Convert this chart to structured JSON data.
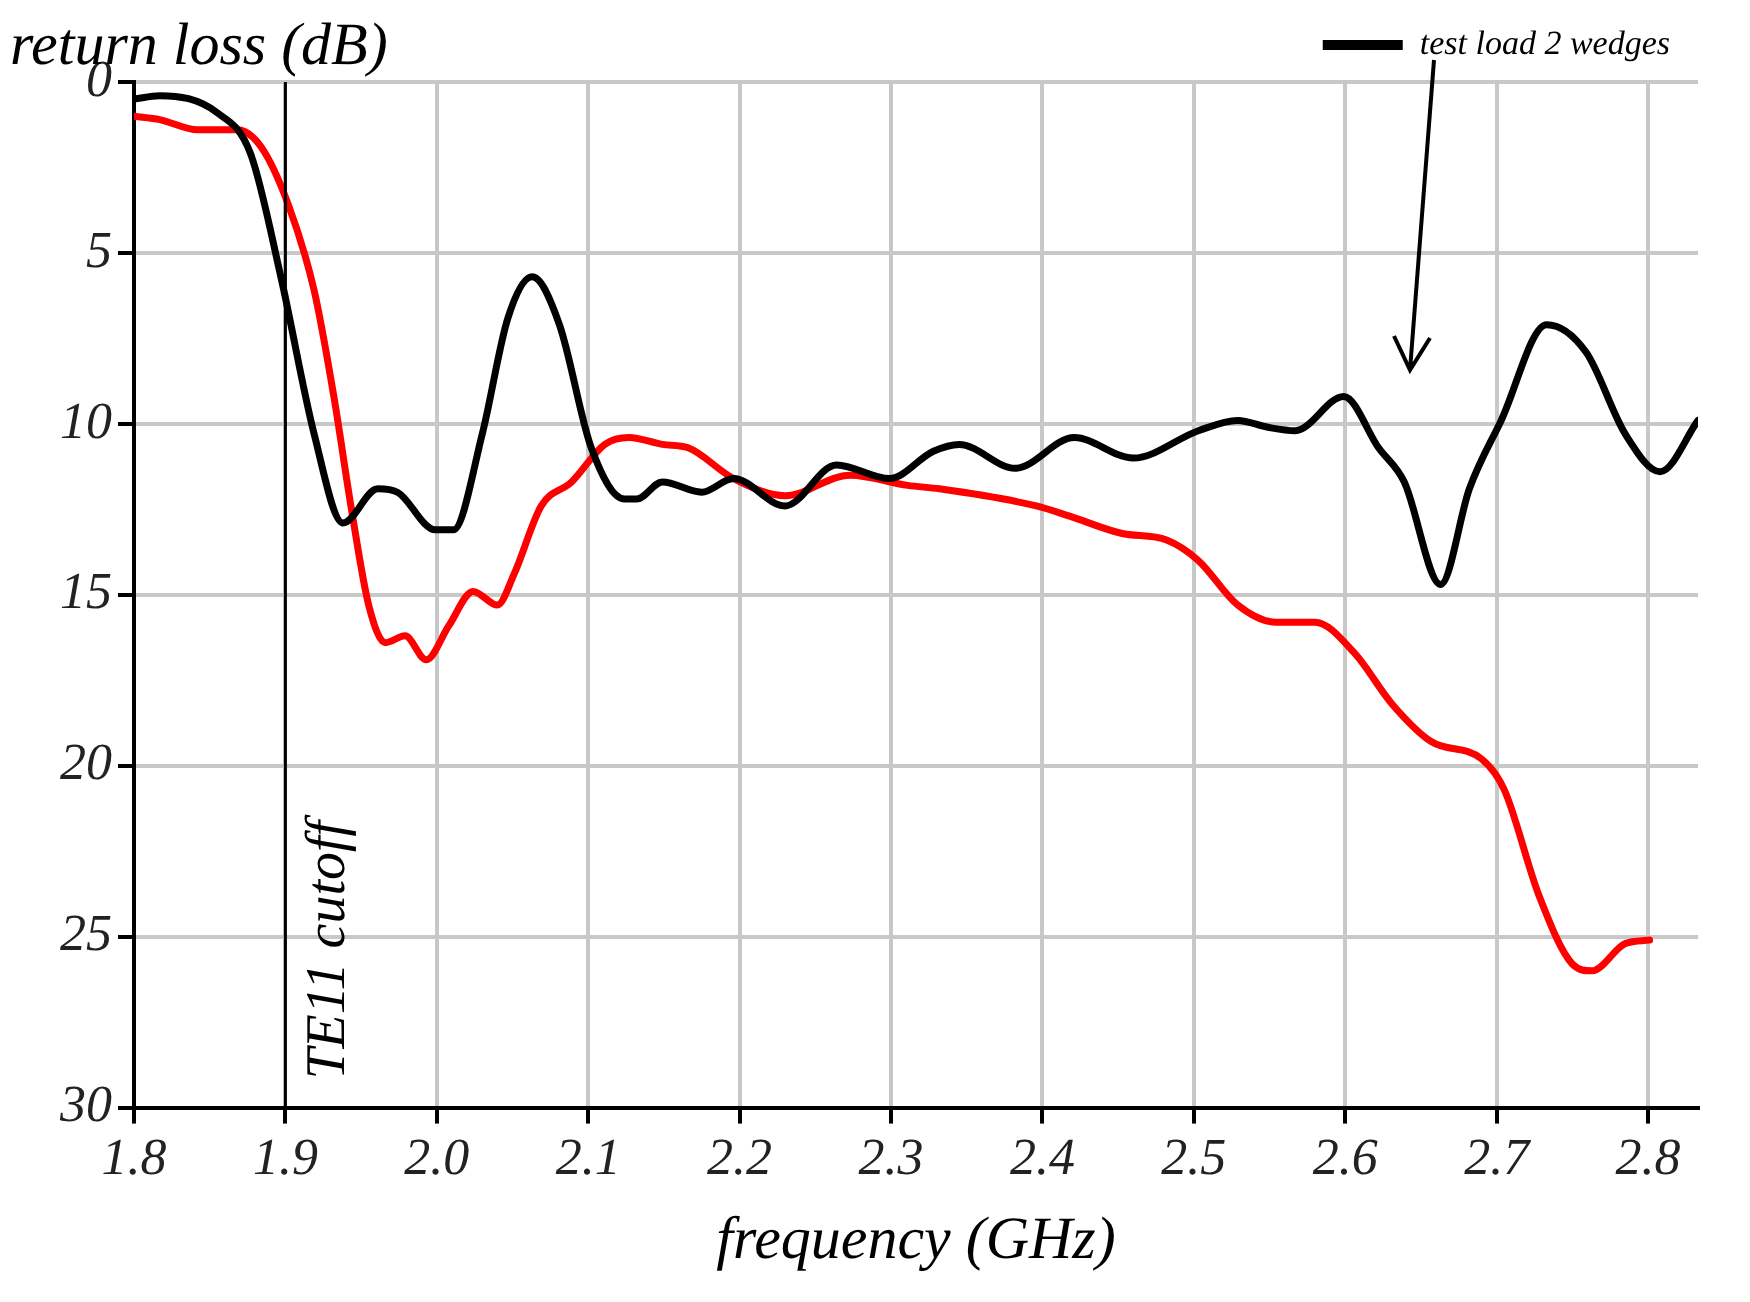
{
  "chart_data": {
    "type": "line",
    "ylabel": "return loss (dB)",
    "xlabel": "frequency (GHz)",
    "xlim": [
      1.8,
      2.833
    ],
    "xticks": [
      {
        "value": 1.8,
        "label": "1.8"
      },
      {
        "value": 1.9,
        "label": "1.9"
      },
      {
        "value": 2.0,
        "label": "2.0"
      },
      {
        "value": 2.1,
        "label": "2.1"
      },
      {
        "value": 2.2,
        "label": "2.2"
      },
      {
        "value": 2.3,
        "label": "2.3"
      },
      {
        "value": 2.4,
        "label": "2.4"
      },
      {
        "value": 2.5,
        "label": "2.5"
      },
      {
        "value": 2.6,
        "label": "2.6"
      },
      {
        "value": 2.7,
        "label": "2.7"
      },
      {
        "value": 2.8,
        "label": "2.8"
      }
    ],
    "ylim": [
      30,
      0
    ],
    "yticks": [
      0,
      5,
      10,
      15,
      20,
      25,
      30
    ],
    "grid": true,
    "legend": "top",
    "marker": "none",
    "line_style": "solid",
    "ref_lines": [
      {
        "axis": "x",
        "value": 1.9,
        "label": "TE11 cutoff",
        "color": "#000000"
      }
    ],
    "series": [
      {
        "name": "test load 2 wedges",
        "color": "#000000",
        "x": [
          1.8,
          1.817,
          1.855,
          1.877,
          1.897,
          1.919,
          1.938,
          1.961,
          1.974,
          1.999,
          2.011,
          2.03,
          2.047,
          2.063,
          2.081,
          2.102,
          2.124,
          2.132,
          2.149,
          2.175,
          2.196,
          2.23,
          2.264,
          2.299,
          2.328,
          2.345,
          2.382,
          2.421,
          2.46,
          2.503,
          2.529,
          2.549,
          2.567,
          2.599,
          2.622,
          2.639,
          2.663,
          2.682,
          2.703,
          2.733,
          2.759,
          2.785,
          2.808,
          2.833
        ],
        "values": [
          0.5,
          0.4,
          0.9,
          2.1,
          5.7,
          10.3,
          12.9,
          11.9,
          12.0,
          13.1,
          13.1,
          10.3,
          6.9,
          5.7,
          7.1,
          10.7,
          12.2,
          12.2,
          11.7,
          12.0,
          11.6,
          12.4,
          11.2,
          11.6,
          10.8,
          10.6,
          11.3,
          10.4,
          11.0,
          10.2,
          9.9,
          10.1,
          10.2,
          9.2,
          10.7,
          11.7,
          14.7,
          11.9,
          9.9,
          7.1,
          7.9,
          10.3,
          11.4,
          9.9
        ]
      },
      {
        "color": "#ff0000",
        "x": [
          1.8,
          1.817,
          1.842,
          1.868,
          1.884,
          1.902,
          1.919,
          1.932,
          1.944,
          1.955,
          1.966,
          1.979,
          1.993,
          2.008,
          2.024,
          2.04,
          2.051,
          2.069,
          2.089,
          2.111,
          2.127,
          2.149,
          2.166,
          2.196,
          2.23,
          2.273,
          2.311,
          2.332,
          2.396,
          2.418,
          2.452,
          2.482,
          2.503,
          2.529,
          2.554,
          2.58,
          2.606,
          2.631,
          2.657,
          2.69,
          2.705,
          2.728,
          2.75,
          2.763,
          2.785,
          2.801
        ],
        "values": [
          1.0,
          1.1,
          1.4,
          1.4,
          1.9,
          3.6,
          6.1,
          9.2,
          12.6,
          15.3,
          16.4,
          16.2,
          16.9,
          15.9,
          14.9,
          15.3,
          14.4,
          12.4,
          11.7,
          10.6,
          10.4,
          10.6,
          10.7,
          11.6,
          12.1,
          11.5,
          11.8,
          11.9,
          12.4,
          12.7,
          13.2,
          13.4,
          14.0,
          15.3,
          15.8,
          15.8,
          16.7,
          18.2,
          19.3,
          19.8,
          20.7,
          23.8,
          25.8,
          26.0,
          25.2,
          25.1
        ]
      }
    ]
  }
}
